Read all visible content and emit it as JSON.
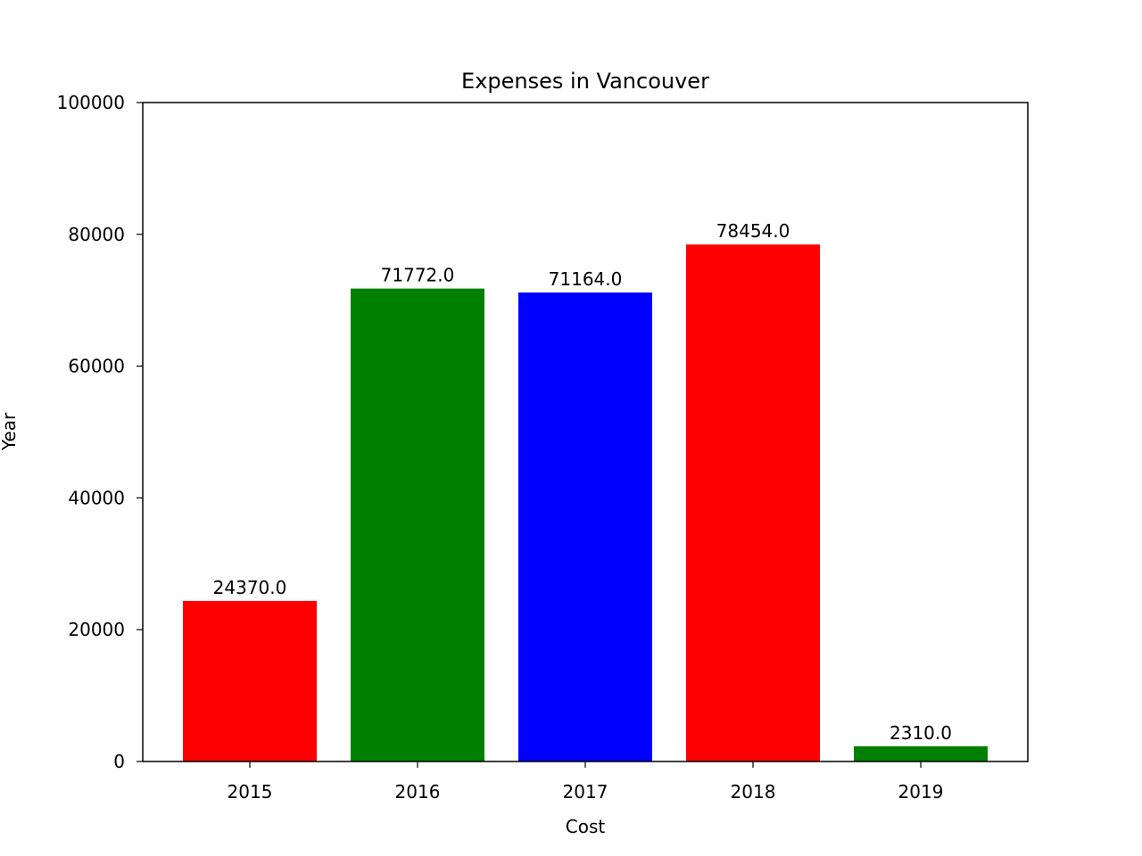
{
  "chart_data": {
    "type": "bar",
    "title": "Expenses in Vancouver",
    "xlabel": "Cost",
    "ylabel": "Year",
    "categories": [
      "2015",
      "2016",
      "2017",
      "2018",
      "2019"
    ],
    "values": [
      24370.0,
      71772.0,
      71164.0,
      78454.0,
      2310.0
    ],
    "value_labels": [
      "24370.0",
      "71772.0",
      "71164.0",
      "78454.0",
      "2310.0"
    ],
    "bar_colors": [
      "#ff0000",
      "#008000",
      "#0000ff",
      "#ff0000",
      "#008000"
    ],
    "ylim": [
      0,
      100000
    ],
    "yticks": [
      "0",
      "20000",
      "40000",
      "60000",
      "80000",
      "100000"
    ],
    "grid": false,
    "legend": "none"
  }
}
